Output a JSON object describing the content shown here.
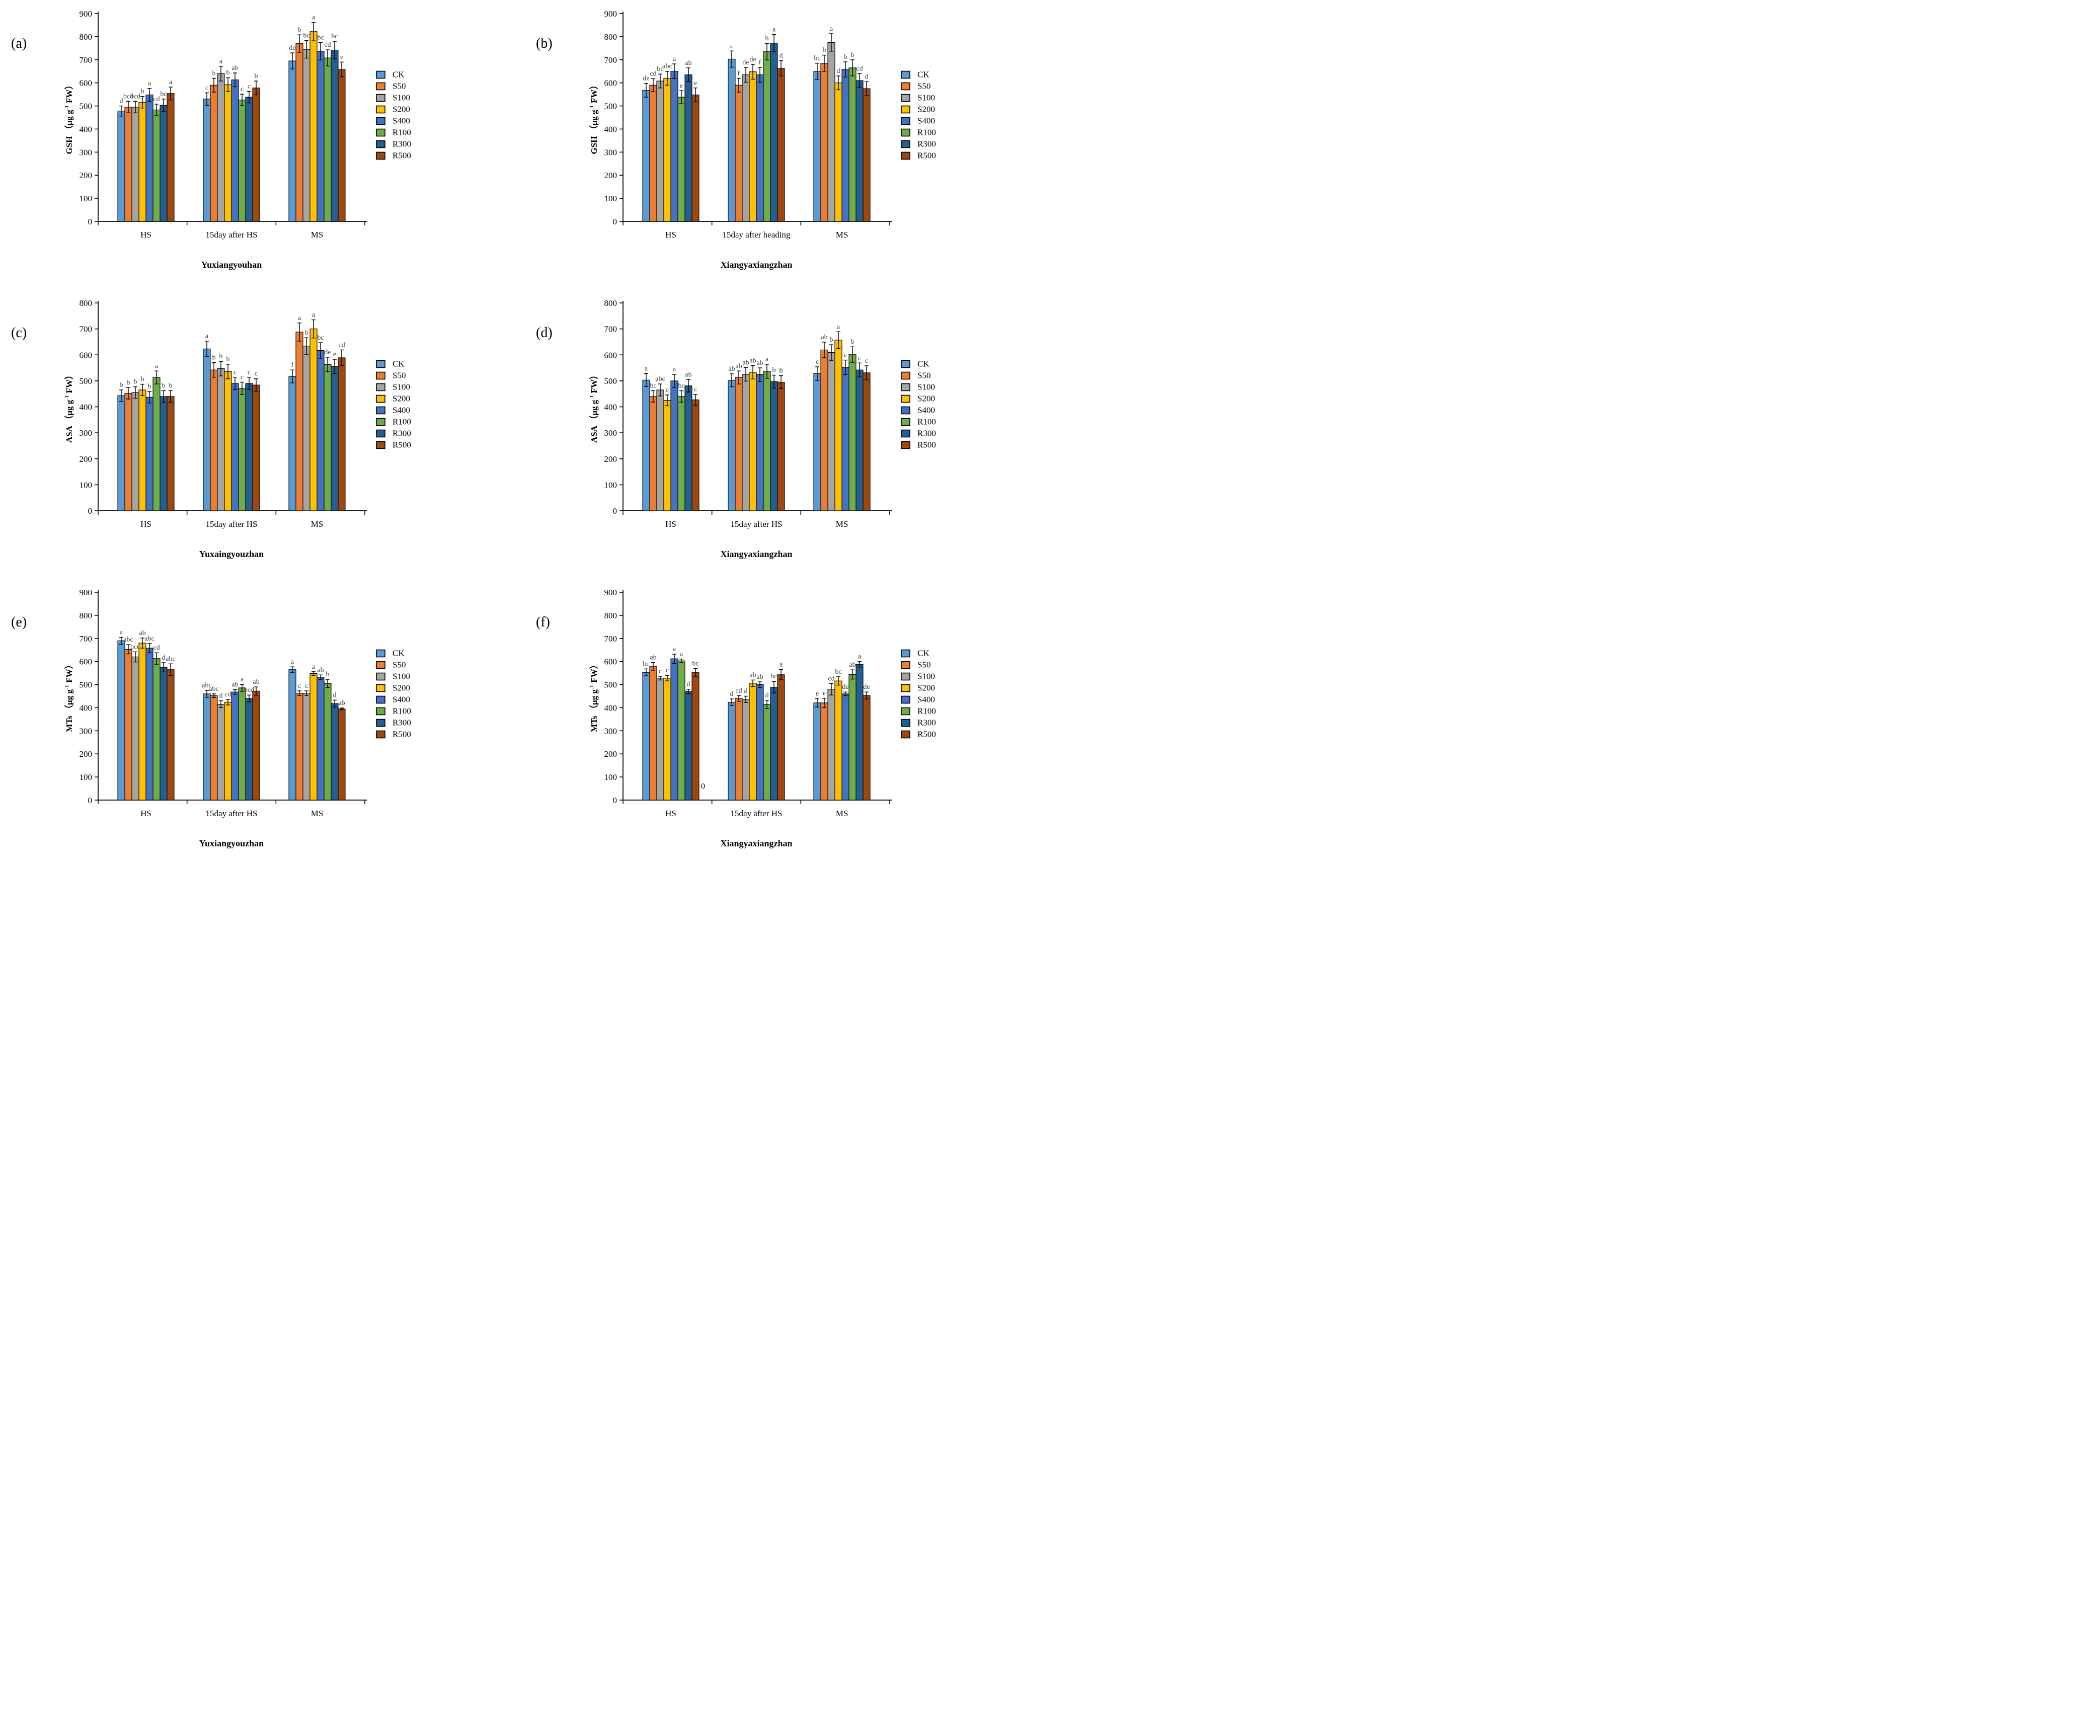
{
  "figure": {
    "legend_labels": [
      "CK",
      "S50",
      "S100",
      "S200",
      "S400",
      "R100",
      "R300",
      "R500"
    ],
    "colors": {
      "CK": "#5B9BD5",
      "S50": "#ED7D31",
      "S100": "#A5A5A5",
      "S200": "#FFC000",
      "S400": "#4472C4",
      "R100": "#70AD47",
      "R300": "#255E91",
      "R500": "#9E480E"
    },
    "letter_color": "#3f3f3f",
    "axis_color": "#000000",
    "legend_position": "right",
    "grid": "off"
  },
  "chart_data": [
    {
      "type": "bar",
      "panel_label": "(a)",
      "measure": "GSH",
      "unit": {
        "pre": "（μg g",
        "sup": "-1",
        "post": " FW）"
      },
      "xlabel": "Yuxiangyouhan",
      "ylim": [
        0,
        900
      ],
      "ytick_step": 100,
      "categories": [
        "HS",
        "15day after HS",
        "MS"
      ],
      "series": [
        {
          "name": "CK",
          "values": [
            478,
            530,
            695
          ],
          "errors": [
            22,
            27,
            35
          ],
          "letters": [
            "d",
            "c",
            "de"
          ]
        },
        {
          "name": "S50",
          "values": [
            495,
            590,
            770
          ],
          "errors": [
            25,
            30,
            38
          ],
          "letters": [
            "bcd",
            "b",
            "b"
          ]
        },
        {
          "name": "S100",
          "values": [
            495,
            640,
            745
          ],
          "errors": [
            25,
            32,
            38
          ],
          "letters": [
            "bcd",
            "a",
            "bc"
          ]
        },
        {
          "name": "S200",
          "values": [
            516,
            592,
            822
          ],
          "errors": [
            25,
            30,
            40
          ],
          "letters": [
            "b",
            "b",
            "a"
          ]
        },
        {
          "name": "S400",
          "values": [
            548,
            613,
            737
          ],
          "errors": [
            28,
            30,
            38
          ],
          "letters": [
            "a",
            "ab",
            "bc"
          ]
        },
        {
          "name": "R100",
          "values": [
            483,
            526,
            708
          ],
          "errors": [
            25,
            25,
            35
          ],
          "letters": [
            "cd",
            "c",
            "cd"
          ]
        },
        {
          "name": "R300",
          "values": [
            503,
            538,
            742
          ],
          "errors": [
            27,
            25,
            38
          ],
          "letters": [
            "bc",
            "c",
            "bc"
          ]
        },
        {
          "name": "R500",
          "values": [
            554,
            578,
            658
          ],
          "errors": [
            28,
            30,
            32
          ],
          "letters": [
            "a",
            "b",
            "e"
          ]
        }
      ]
    },
    {
      "type": "bar",
      "panel_label": "(b)",
      "measure": "GSH",
      "unit": {
        "pre": "（μg g",
        "sup": "-1",
        "post": " FW）"
      },
      "xlabel": "Xiangyaxiangzhan",
      "ylim": [
        0,
        900
      ],
      "ytick_step": 100,
      "categories": [
        "HS",
        "15day after heading",
        "MS"
      ],
      "series": [
        {
          "name": "CK",
          "values": [
            568,
            703,
            650
          ],
          "errors": [
            30,
            35,
            35
          ],
          "letters": [
            "de",
            "c",
            "bc"
          ]
        },
        {
          "name": "S50",
          "values": [
            590,
            590,
            685
          ],
          "errors": [
            28,
            30,
            35
          ],
          "letters": [
            "cd",
            "f",
            "b"
          ]
        },
        {
          "name": "S100",
          "values": [
            608,
            635,
            775
          ],
          "errors": [
            30,
            32,
            38
          ],
          "letters": [
            "bc",
            "de",
            "a"
          ]
        },
        {
          "name": "S200",
          "values": [
            620,
            648,
            600
          ],
          "errors": [
            30,
            32,
            30
          ],
          "letters": [
            "abc",
            "de",
            "d"
          ]
        },
        {
          "name": "S400",
          "values": [
            650,
            635,
            658
          ],
          "errors": [
            32,
            32,
            33
          ],
          "letters": [
            "a",
            "f",
            "b"
          ]
        },
        {
          "name": "R100",
          "values": [
            538,
            735,
            665
          ],
          "errors": [
            28,
            36,
            35
          ],
          "letters": [
            "e",
            "b",
            "b"
          ]
        },
        {
          "name": "R300",
          "values": [
            635,
            772,
            610
          ],
          "errors": [
            30,
            38,
            30
          ],
          "letters": [
            "ab",
            "a",
            "cd"
          ]
        },
        {
          "name": "R500",
          "values": [
            548,
            663,
            575
          ],
          "errors": [
            30,
            33,
            30
          ],
          "letters": [
            "e",
            "d",
            "d"
          ]
        }
      ]
    },
    {
      "type": "bar",
      "panel_label": "(c)",
      "measure": "ASA",
      "unit": {
        "pre": "（μg g",
        "sup": "-1",
        "post": " FW）"
      },
      "xlabel": "Yuxaingyouzhan",
      "ylim": [
        0,
        800
      ],
      "ytick_step": 100,
      "categories": [
        "HS",
        "15day after HS",
        "MS"
      ],
      "series": [
        {
          "name": "CK",
          "values": [
            443,
            623,
            517
          ],
          "errors": [
            22,
            30,
            25
          ],
          "letters": [
            "b",
            "a",
            "f"
          ]
        },
        {
          "name": "S50",
          "values": [
            452,
            542,
            688
          ],
          "errors": [
            22,
            28,
            35
          ],
          "letters": [
            "b",
            "b",
            "a"
          ]
        },
        {
          "name": "S100",
          "values": [
            455,
            547,
            634
          ],
          "errors": [
            22,
            28,
            32
          ],
          "letters": [
            "b",
            "b",
            "b"
          ]
        },
        {
          "name": "S200",
          "values": [
            465,
            536,
            700
          ],
          "errors": [
            22,
            28,
            35
          ],
          "letters": [
            "b",
            "b",
            "a"
          ]
        },
        {
          "name": "S400",
          "values": [
            437,
            490,
            617
          ],
          "errors": [
            22,
            24,
            30
          ],
          "letters": [
            "b",
            "c",
            "bc"
          ]
        },
        {
          "name": "R100",
          "values": [
            513,
            471,
            563
          ],
          "errors": [
            25,
            24,
            28
          ],
          "letters": [
            "a",
            "c",
            "de"
          ]
        },
        {
          "name": "R300",
          "values": [
            440,
            490,
            555
          ],
          "errors": [
            22,
            24,
            28
          ],
          "letters": [
            "b",
            "c",
            "e"
          ]
        },
        {
          "name": "R500",
          "values": [
            440,
            484,
            589
          ],
          "errors": [
            22,
            24,
            30
          ],
          "letters": [
            "b",
            "c",
            "cd"
          ]
        }
      ]
    },
    {
      "type": "bar",
      "panel_label": "(d)",
      "measure": "ASA",
      "unit": {
        "pre": "（μg g",
        "sup": "-1",
        "post": " FW）"
      },
      "xlabel": "Xiangyaxiangzhan",
      "ylim": [
        0,
        800
      ],
      "ytick_step": 100,
      "categories": [
        "HS",
        "15day after HS",
        "MS"
      ],
      "series": [
        {
          "name": "CK",
          "values": [
            503,
            502,
            528
          ],
          "errors": [
            25,
            25,
            26
          ],
          "letters": [
            "a",
            "ab",
            "c"
          ]
        },
        {
          "name": "S50",
          "values": [
            440,
            513,
            619
          ],
          "errors": [
            22,
            25,
            30
          ],
          "letters": [
            "bc",
            "ab",
            "ab"
          ]
        },
        {
          "name": "S100",
          "values": [
            465,
            525,
            609
          ],
          "errors": [
            23,
            26,
            30
          ],
          "letters": [
            "abc",
            "ab",
            "b"
          ]
        },
        {
          "name": "S200",
          "values": [
            425,
            533,
            657
          ],
          "errors": [
            21,
            26,
            32
          ],
          "letters": [
            "c",
            "ab",
            "a"
          ]
        },
        {
          "name": "S400",
          "values": [
            500,
            524,
            552
          ],
          "errors": [
            25,
            26,
            28
          ],
          "letters": [
            "a",
            "ab",
            "c"
          ]
        },
        {
          "name": "R100",
          "values": [
            440,
            537,
            601
          ],
          "errors": [
            22,
            27,
            30
          ],
          "letters": [
            "bc",
            "a",
            "b"
          ]
        },
        {
          "name": "R300",
          "values": [
            481,
            497,
            542
          ],
          "errors": [
            24,
            25,
            27
          ],
          "letters": [
            "ab",
            "b",
            "c"
          ]
        },
        {
          "name": "R500",
          "values": [
            427,
            495,
            531
          ],
          "errors": [
            21,
            25,
            27
          ],
          "letters": [
            "c",
            "b",
            "c"
          ]
        }
      ]
    },
    {
      "type": "bar",
      "panel_label": "(e)",
      "measure": "MTs",
      "unit": {
        "pre": "（μg g",
        "sup": "-1",
        "post": " FW）"
      },
      "xlabel": "Yuxiangyouzhan",
      "ylim": [
        0,
        900
      ],
      "ytick_step": 100,
      "categories": [
        "HS",
        "15day after HS",
        "MS"
      ],
      "series": [
        {
          "name": "CK",
          "values": [
            690,
            460,
            565
          ],
          "errors": [
            15,
            15,
            12
          ],
          "letters": [
            "a",
            "abc",
            "a"
          ]
        },
        {
          "name": "S50",
          "values": [
            653,
            452,
            463
          ],
          "errors": [
            20,
            8,
            10
          ],
          "letters": [
            "abc",
            "abc",
            "c"
          ]
        },
        {
          "name": "S100",
          "values": [
            620,
            415,
            463
          ],
          "errors": [
            22,
            15,
            10
          ],
          "letters": [
            "bcd",
            "d",
            "c"
          ]
        },
        {
          "name": "S200",
          "values": [
            680,
            424,
            548
          ],
          "errors": [
            22,
            12,
            8
          ],
          "letters": [
            "ab",
            "cd",
            "a"
          ]
        },
        {
          "name": "S400",
          "values": [
            658,
            468,
            532
          ],
          "errors": [
            20,
            10,
            10
          ],
          "letters": [
            "abc",
            "ab",
            "ab"
          ]
        },
        {
          "name": "R100",
          "values": [
            613,
            486,
            505
          ],
          "errors": [
            25,
            15,
            18
          ],
          "letters": [
            "cd",
            "a",
            "b"
          ]
        },
        {
          "name": "R300",
          "values": [
            575,
            440,
            418
          ],
          "errors": [
            20,
            15,
            15
          ],
          "letters": [
            "d",
            "bcd",
            "d"
          ]
        },
        {
          "name": "R500",
          "values": [
            565,
            472,
            395
          ],
          "errors": [
            25,
            18,
            4
          ],
          "letters": [
            "abc",
            "ab",
            "ab"
          ]
        }
      ]
    },
    {
      "type": "bar",
      "panel_label": "(f)",
      "measure": "MTs",
      "unit": {
        "pre": "（μg g",
        "sup": "-1",
        "post": " FW）"
      },
      "xlabel": "Xiangyaxiangzhan",
      "ylim": [
        0,
        900
      ],
      "ytick_step": 100,
      "categories": [
        "HS",
        "15day after HS",
        "MS"
      ],
      "extra_label": {
        "text": "0",
        "category_index": 0,
        "value": 60
      },
      "series": [
        {
          "name": "CK",
          "values": [
            553,
            424,
            421
          ],
          "errors": [
            15,
            14,
            18
          ],
          "letters": [
            "bc",
            "d",
            "e"
          ]
        },
        {
          "name": "S50",
          "values": [
            578,
            440,
            421
          ],
          "errors": [
            18,
            12,
            20
          ],
          "letters": [
            "ab",
            "cd",
            "e"
          ]
        },
        {
          "name": "S100",
          "values": [
            528,
            436,
            480
          ],
          "errors": [
            8,
            14,
            25
          ],
          "letters": [
            "c",
            "d",
            "cd"
          ]
        },
        {
          "name": "S200",
          "values": [
            528,
            506,
            516
          ],
          "errors": [
            12,
            14,
            18
          ],
          "letters": [
            "c",
            "ab",
            "bc"
          ]
        },
        {
          "name": "S400",
          "values": [
            612,
            500,
            460
          ],
          "errors": [
            20,
            12,
            8
          ],
          "letters": [
            "a",
            "ab",
            "de"
          ]
        },
        {
          "name": "R100",
          "values": [
            603,
            414,
            544
          ],
          "errors": [
            8,
            18,
            20
          ],
          "letters": [
            "a",
            "d",
            "ab"
          ]
        },
        {
          "name": "R300",
          "values": [
            470,
            489,
            588
          ],
          "errors": [
            10,
            25,
            12
          ],
          "letters": [
            "d",
            "bc",
            "a"
          ]
        },
        {
          "name": "R500",
          "values": [
            552,
            543,
            453
          ],
          "errors": [
            18,
            22,
            15
          ],
          "letters": [
            "bc",
            "a",
            "de"
          ]
        }
      ]
    }
  ]
}
